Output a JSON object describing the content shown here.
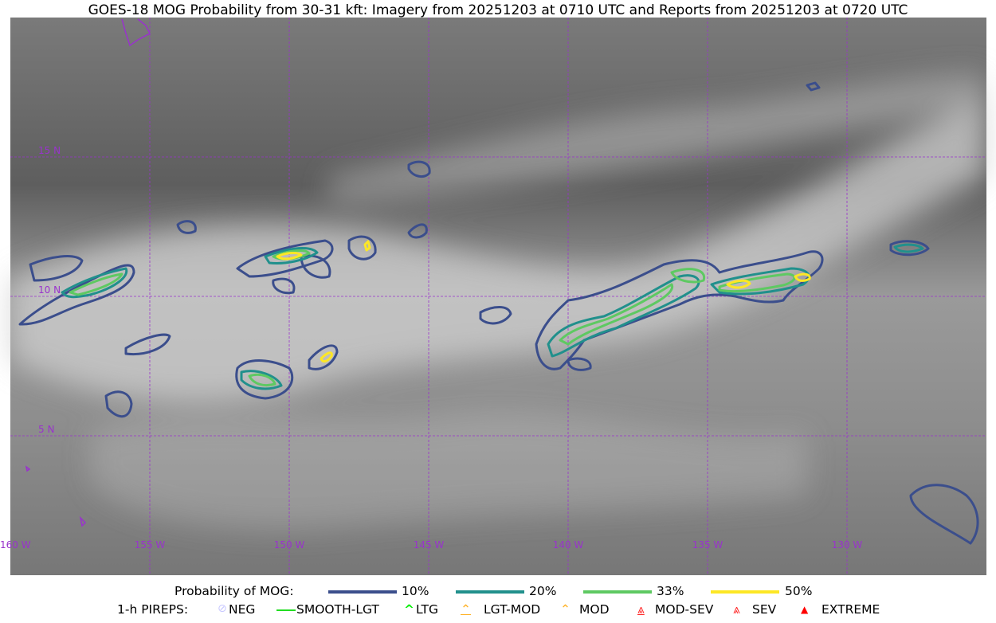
{
  "title": "GOES-18 MOG Probability from 30-31 kft: Imagery from 20251203 at 0710 UTC and Reports from 20251203 at 0720 UTC",
  "map": {
    "longitude_labels": [
      "160 W",
      "155 W",
      "150 W",
      "145 W",
      "140 W",
      "135 W",
      "130 W"
    ],
    "latitude_labels": [
      "15 N",
      "10 N",
      "5 N"
    ],
    "gridline_color": "#9933cc",
    "coastline_color": "#9933cc"
  },
  "legend": {
    "probability": {
      "label": "Probability of MOG:",
      "items": [
        {
          "label": "10%",
          "color": "#3b4e8c"
        },
        {
          "label": "20%",
          "color": "#21908c"
        },
        {
          "label": "33%",
          "color": "#5ec962"
        },
        {
          "label": "50%",
          "color": "#fde725"
        }
      ]
    },
    "pireps": {
      "label": "1-h PIREPS:",
      "items": [
        {
          "label": "NEG",
          "icon": "neg-circle-icon",
          "color": "#c8c8ff"
        },
        {
          "label": "SMOOTH-LGT",
          "icon": "line-icon",
          "color": "#22dd22"
        },
        {
          "label": "LTG",
          "icon": "caret-icon",
          "color": "#00ee00"
        },
        {
          "label": "LGT-MOD",
          "icon": "caret-bar-icon",
          "color": "#ffb020"
        },
        {
          "label": "MOD",
          "icon": "caret-icon",
          "color": "#ffb020"
        },
        {
          "label": "MOD-SEV",
          "icon": "double-caret-bar-icon",
          "color": "#ff2222"
        },
        {
          "label": "SEV",
          "icon": "double-caret-icon",
          "color": "#ff2222"
        },
        {
          "label": "EXTREME",
          "icon": "filled-triangle-icon",
          "color": "#ff0000"
        }
      ]
    }
  }
}
